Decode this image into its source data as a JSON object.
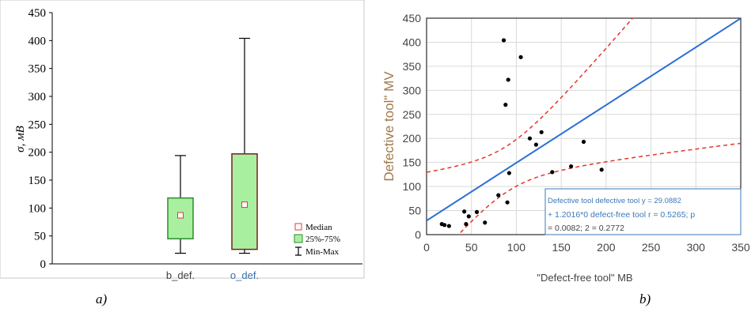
{
  "chart_data": [
    {
      "type": "box",
      "ylabel": "σ, мВ",
      "ylim": [
        0,
        450
      ],
      "yticks": [
        0,
        50,
        100,
        150,
        200,
        250,
        300,
        350,
        400,
        450
      ],
      "categories": [
        "b_def.",
        "o_def."
      ],
      "boxes": [
        {
          "category": "b_def.",
          "min": 19,
          "q1": 45,
          "median": 87,
          "q3": 118,
          "max": 194
        },
        {
          "category": "o_def.",
          "min": 19,
          "q1": 26,
          "median": 106,
          "q3": 197,
          "max": 404
        }
      ],
      "legend": [
        "Median",
        "25%-75%",
        "Min-Max"
      ],
      "panel_label": "a)",
      "colors": {
        "box_b": "#2e8b2e",
        "box_o": "#7a1f1f",
        "fill": "#a8f0a0",
        "median": "#e03c31",
        "label_b": "#404040",
        "label_o": "#3b6ea8"
      }
    },
    {
      "type": "scatter",
      "xlabel": "\"Defect-free tool\" MB",
      "ylabel": "Defective tool\" MV",
      "xlim": [
        0,
        350
      ],
      "ylim": [
        0,
        450
      ],
      "xticks": [
        0,
        50,
        100,
        150,
        200,
        250,
        300,
        350
      ],
      "yticks": [
        0,
        50,
        100,
        150,
        200,
        250,
        300,
        350,
        400,
        450
      ],
      "points": [
        [
          17,
          22
        ],
        [
          20,
          20
        ],
        [
          25,
          18
        ],
        [
          42,
          48
        ],
        [
          44,
          22
        ],
        [
          47,
          38
        ],
        [
          56,
          47
        ],
        [
          65,
          25
        ],
        [
          80,
          82
        ],
        [
          86,
          404
        ],
        [
          88,
          270
        ],
        [
          90,
          67
        ],
        [
          91,
          322
        ],
        [
          92,
          128
        ],
        [
          105,
          369
        ],
        [
          115,
          200
        ],
        [
          122,
          187
        ],
        [
          128,
          213
        ],
        [
          140,
          130
        ],
        [
          161,
          142
        ],
        [
          175,
          193
        ],
        [
          195,
          135
        ]
      ],
      "fit": {
        "intercept": 29.0882,
        "slope": 1.2016
      },
      "annotation": [
        "Defective tool defective tool y = 29.0882",
        "+ 1.2016*0 defect-free tool r = 0.5265; p",
        "= 0.0082; 2 = 0.2772"
      ],
      "panel_label": "b)",
      "colors": {
        "points": "#000000",
        "fit": "#2a6fd6",
        "ci": "#e8342c",
        "ylabel": "#a0784a",
        "annotation": "#3e78b8"
      }
    }
  ]
}
